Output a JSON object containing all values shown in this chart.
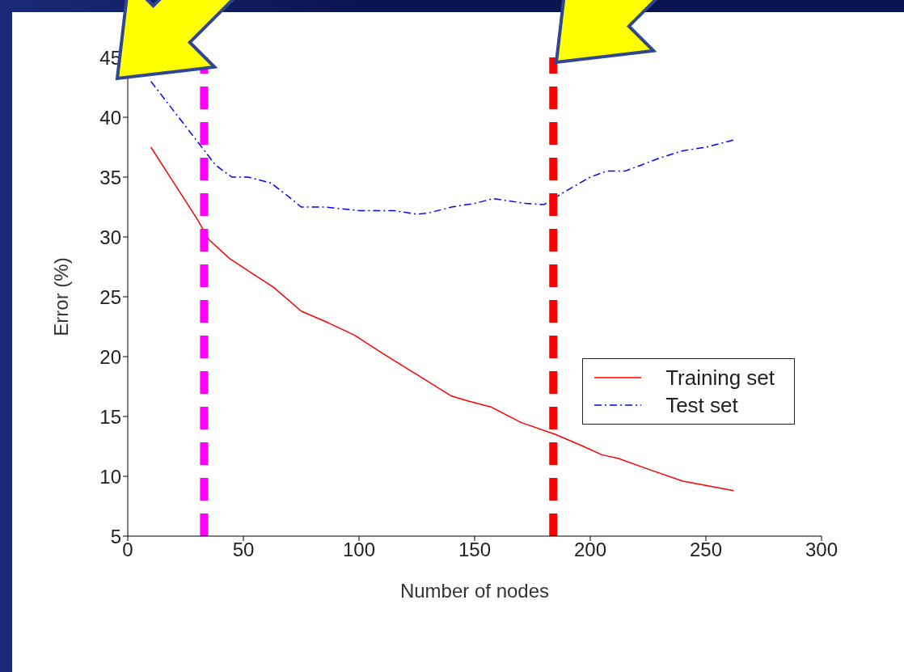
{
  "chart_data": {
    "type": "line",
    "xlabel": "Number of nodes",
    "ylabel": "Error (%)",
    "xlim": [
      0,
      300
    ],
    "xticks": [
      0,
      50,
      100,
      150,
      200,
      250,
      300
    ],
    "ylim": [
      5,
      45
    ],
    "yticks": [
      5,
      10,
      15,
      20,
      25,
      30,
      35,
      40,
      45
    ],
    "legend": "right",
    "marker": "none",
    "series": [
      {
        "name": "Training set",
        "color": "#ff0000",
        "line_style": "solid",
        "x": [
          10,
          20,
          30,
          35,
          44,
          55,
          63,
          75,
          87,
          98,
          110,
          125,
          140,
          147,
          157,
          170,
          185,
          197,
          205,
          212,
          225,
          240,
          248,
          262
        ],
        "values": [
          37.5,
          34.5,
          31.5,
          29.8,
          28.2,
          26.8,
          25.8,
          23.8,
          22.8,
          21.8,
          20.3,
          18.5,
          16.7,
          16.3,
          15.8,
          14.5,
          13.5,
          12.5,
          11.8,
          11.5,
          10.6,
          9.6,
          9.3,
          8.8
        ]
      },
      {
        "name": "Test set",
        "color": "#0000ff",
        "line_style": "dashed",
        "x": [
          10,
          20,
          30,
          38,
          45,
          52,
          62,
          70,
          75,
          85,
          100,
          115,
          125,
          130,
          140,
          150,
          158,
          165,
          172,
          180,
          190,
          200,
          207,
          215,
          222,
          230,
          240,
          250,
          262
        ],
        "values": [
          43,
          40.5,
          38,
          36,
          35,
          35,
          34.5,
          33.3,
          32.5,
          32.5,
          32.2,
          32.2,
          31.9,
          32,
          32.5,
          32.8,
          33.2,
          33,
          32.8,
          32.7,
          33.9,
          35,
          35.5,
          35.5,
          36,
          36.6,
          37.2,
          37.5,
          38.1
        ]
      }
    ],
    "ref_lines": [
      {
        "axis": "x",
        "value": 33,
        "color": "#ff00ff",
        "line_style": "dashed"
      },
      {
        "axis": "x",
        "value": 184,
        "color": "#ff0000",
        "line_style": "dashed"
      }
    ]
  }
}
